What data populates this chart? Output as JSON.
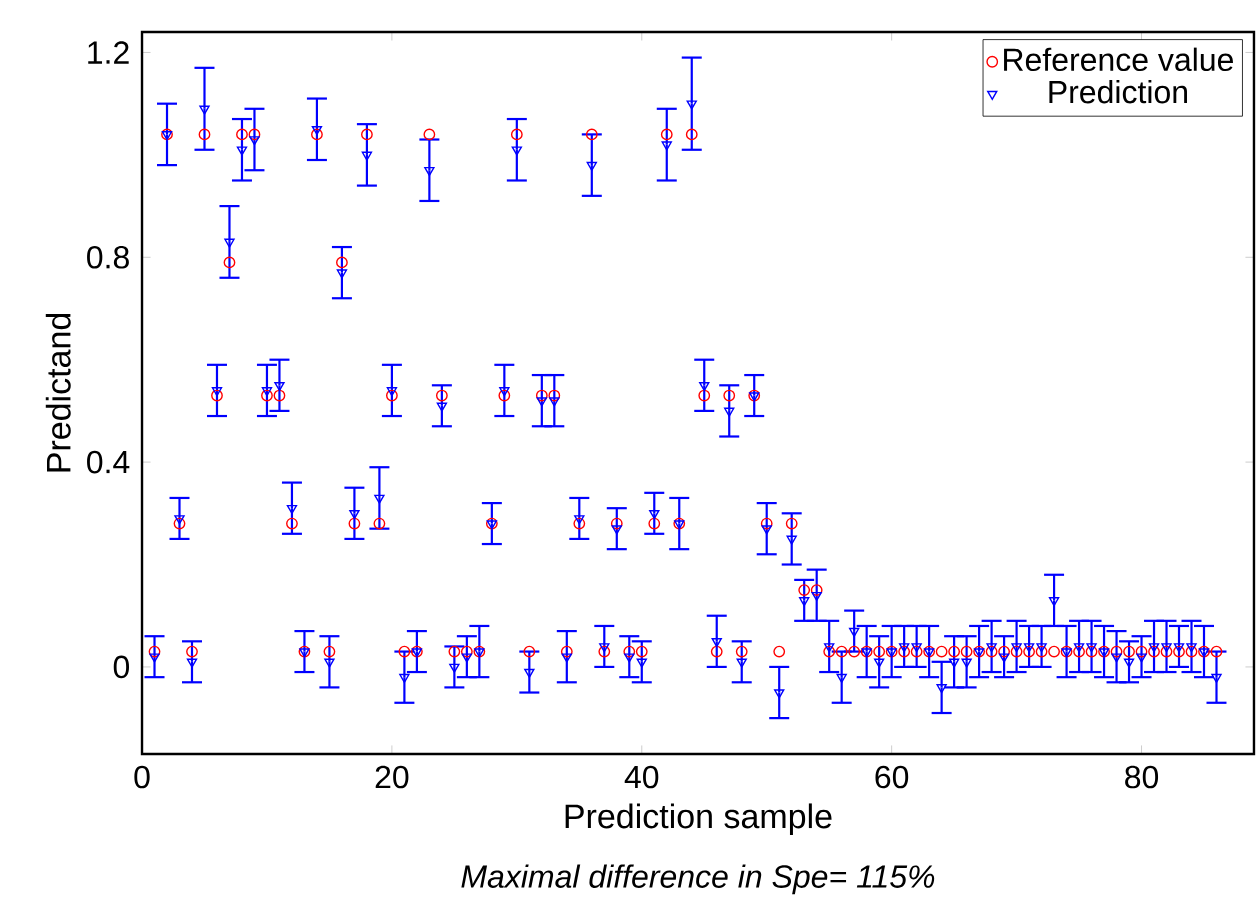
{
  "chart_data": {
    "type": "scatter",
    "xlabel": "Prediction sample",
    "ylabel": "Predictand",
    "annotations": [
      "Maximal difference in Spe= 115%"
    ],
    "x": [
      1,
      2,
      3,
      4,
      5,
      6,
      7,
      8,
      9,
      10,
      11,
      12,
      13,
      14,
      15,
      16,
      17,
      18,
      19,
      20,
      21,
      22,
      23,
      24,
      25,
      26,
      27,
      28,
      29,
      30,
      31,
      32,
      33,
      34,
      35,
      36,
      37,
      38,
      39,
      40,
      41,
      42,
      43,
      44,
      45,
      46,
      47,
      48,
      49,
      50,
      51,
      52,
      53,
      54,
      55,
      56,
      57,
      58,
      59,
      60,
      61,
      62,
      63,
      64,
      65,
      66,
      67,
      68,
      69,
      70,
      71,
      72,
      73,
      74,
      75,
      76,
      77,
      78,
      79,
      80,
      81,
      82,
      83,
      84,
      85,
      86
    ],
    "series": [
      {
        "name": "Reference value",
        "color": "#ff0000",
        "marker": "circle",
        "values": [
          0.03,
          1.04,
          0.28,
          0.03,
          1.04,
          0.53,
          0.79,
          1.04,
          1.04,
          0.53,
          0.53,
          0.28,
          0.03,
          1.04,
          0.03,
          0.79,
          0.28,
          1.04,
          0.28,
          0.53,
          0.03,
          0.03,
          1.04,
          0.53,
          0.03,
          0.03,
          0.03,
          0.28,
          0.53,
          1.04,
          0.03,
          0.53,
          0.53,
          0.03,
          0.28,
          1.04,
          0.03,
          0.28,
          0.03,
          0.03,
          0.28,
          1.04,
          0.28,
          1.04,
          0.53,
          0.03,
          0.53,
          0.03,
          0.53,
          0.28,
          0.03,
          0.28,
          0.15,
          0.15,
          0.03,
          0.03,
          0.03,
          0.03,
          0.03,
          0.03,
          0.03,
          0.03,
          0.03,
          0.03,
          0.03,
          0.03,
          0.03,
          0.03,
          0.03,
          0.03,
          0.03,
          0.03,
          0.03,
          0.03,
          0.03,
          0.03,
          0.03,
          0.03,
          0.03,
          0.03,
          0.03,
          0.03,
          0.03,
          0.03,
          0.03,
          0.03
        ]
      },
      {
        "name": "Prediction",
        "color": "#0000ff",
        "marker": "triangle",
        "values": [
          0.02,
          1.04,
          0.29,
          0.01,
          1.09,
          0.54,
          0.83,
          1.01,
          1.03,
          0.54,
          0.55,
          0.31,
          0.03,
          1.05,
          0.01,
          0.77,
          0.3,
          1.0,
          0.33,
          0.54,
          -0.02,
          0.03,
          0.97,
          0.51,
          0.0,
          0.02,
          0.03,
          0.28,
          0.54,
          1.01,
          -0.01,
          0.52,
          0.52,
          0.02,
          0.29,
          0.98,
          0.04,
          0.27,
          0.02,
          0.01,
          0.3,
          1.02,
          0.28,
          1.1,
          0.55,
          0.05,
          0.5,
          0.01,
          0.53,
          0.27,
          -0.05,
          0.25,
          0.13,
          0.14,
          0.04,
          -0.02,
          0.07,
          0.03,
          0.01,
          0.03,
          0.04,
          0.04,
          0.03,
          -0.04,
          0.01,
          0.01,
          0.03,
          0.04,
          0.02,
          0.04,
          0.04,
          0.04,
          0.13,
          0.03,
          0.04,
          0.04,
          0.03,
          0.02,
          0.01,
          0.02,
          0.04,
          0.04,
          0.04,
          0.04,
          0.03,
          -0.02
        ],
        "errors": [
          0.04,
          0.06,
          0.04,
          0.04,
          0.08,
          0.05,
          0.07,
          0.06,
          0.06,
          0.05,
          0.05,
          0.05,
          0.04,
          0.06,
          0.05,
          0.05,
          0.05,
          0.06,
          0.06,
          0.05,
          0.05,
          0.04,
          0.06,
          0.04,
          0.04,
          0.04,
          0.05,
          0.04,
          0.05,
          0.06,
          0.04,
          0.05,
          0.05,
          0.05,
          0.04,
          0.06,
          0.04,
          0.04,
          0.04,
          0.04,
          0.04,
          0.07,
          0.05,
          0.09,
          0.05,
          0.05,
          0.05,
          0.04,
          0.04,
          0.05,
          0.05,
          0.05,
          0.04,
          0.05,
          0.05,
          0.05,
          0.04,
          0.05,
          0.05,
          0.05,
          0.04,
          0.04,
          0.05,
          0.05,
          0.05,
          0.05,
          0.05,
          0.05,
          0.04,
          0.05,
          0.04,
          0.04,
          0.05,
          0.05,
          0.05,
          0.05,
          0.05,
          0.05,
          0.04,
          0.04,
          0.05,
          0.05,
          0.04,
          0.05,
          0.05,
          0.05
        ]
      }
    ],
    "xlim": [
      0,
      89
    ],
    "ylim": [
      -0.17,
      1.24
    ],
    "xticks": [
      0,
      20,
      40,
      60,
      80
    ],
    "yticks": [
      0,
      0.4,
      0.8,
      1.2
    ],
    "legend": "top right"
  }
}
